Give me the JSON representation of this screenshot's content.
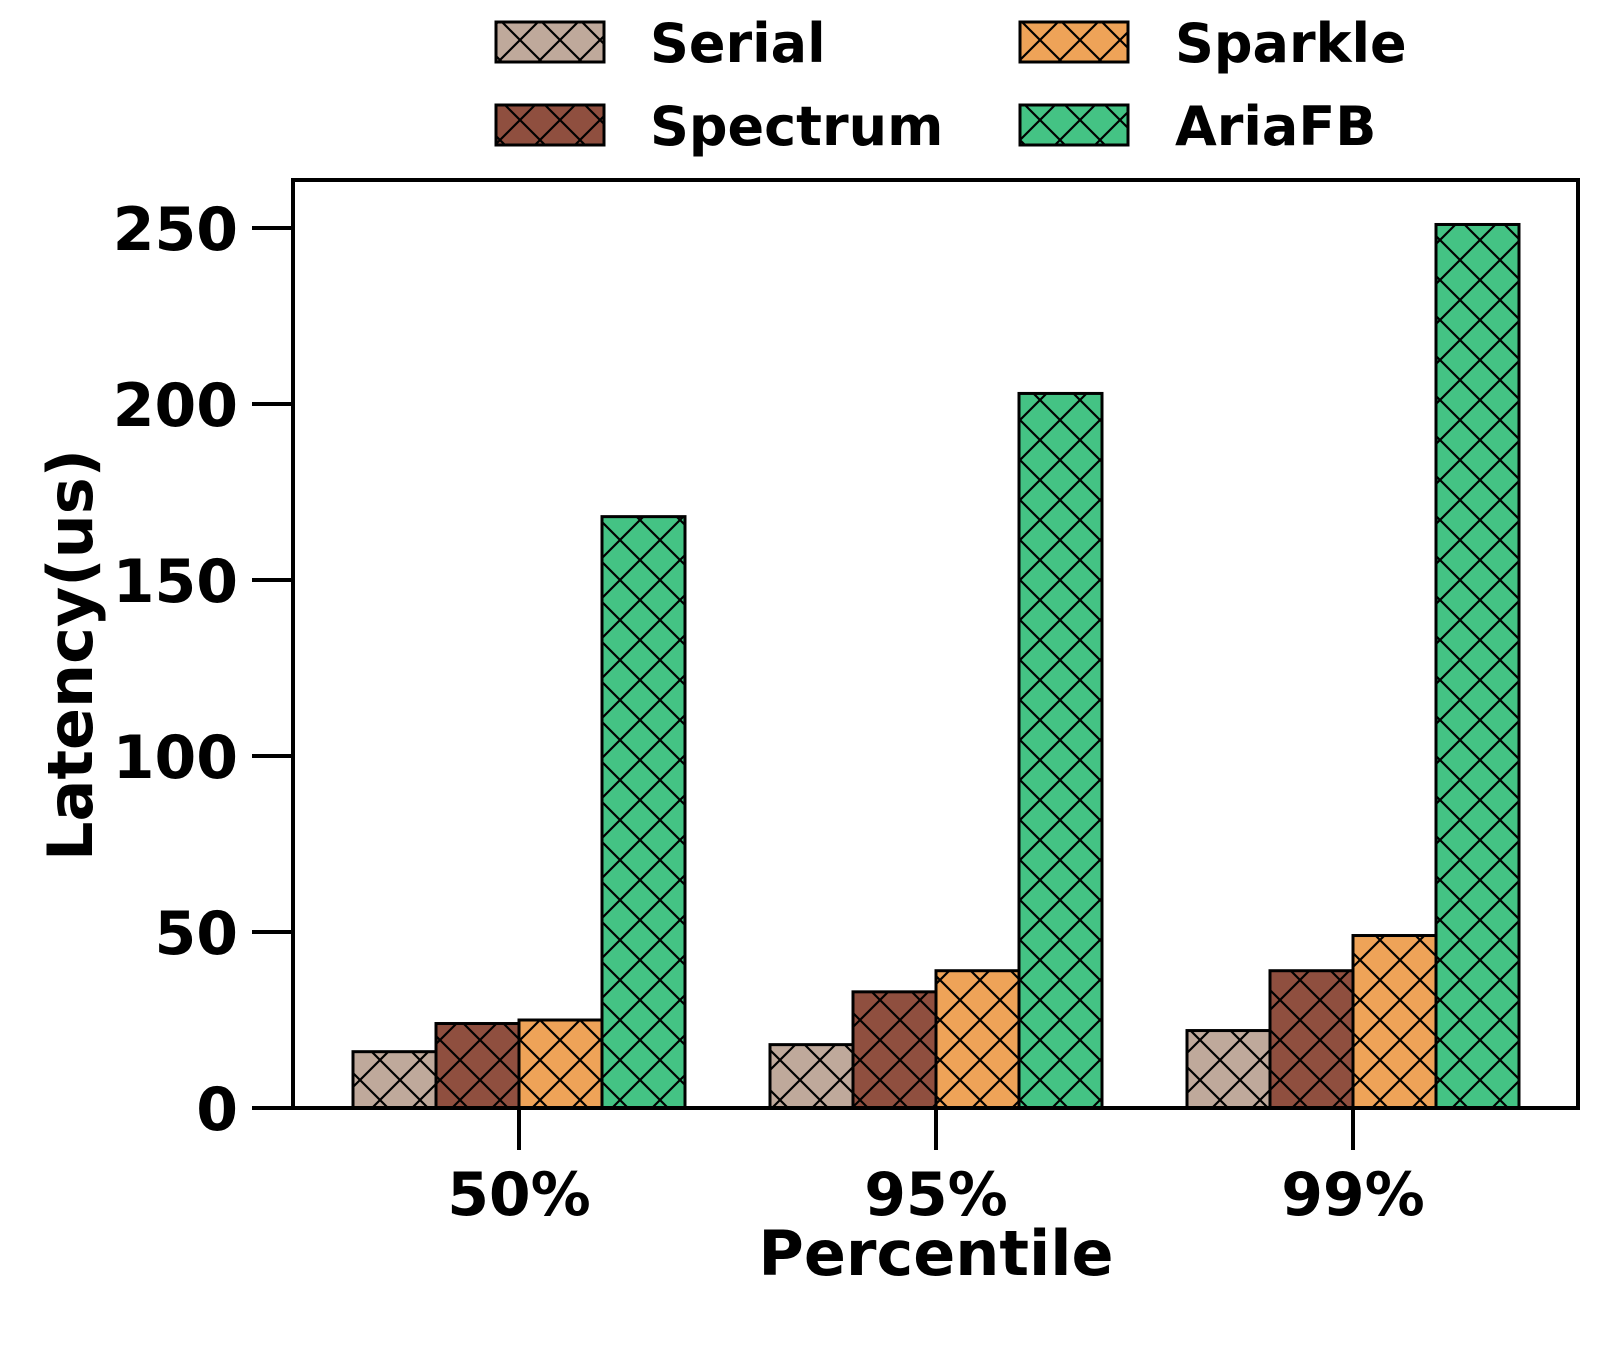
{
  "chart_data": {
    "type": "bar",
    "xlabel": "Percentile",
    "ylabel": "Latency(us)",
    "categories": [
      "50%",
      "95%",
      "99%"
    ],
    "ylim": [
      0,
      265
    ],
    "yticks": [
      0,
      50,
      100,
      150,
      200,
      250
    ],
    "grid": false,
    "legend_position": "top",
    "series": [
      {
        "name": "Serial",
        "color": "#bfa99b",
        "values": [
          16,
          18,
          22
        ]
      },
      {
        "name": "Spectrum",
        "color": "#8f4f3f",
        "values": [
          24,
          33,
          39
        ]
      },
      {
        "name": "Sparkle",
        "color": "#eea358",
        "values": [
          25,
          39,
          49
        ]
      },
      {
        "name": "AriaFB",
        "color": "#44c384",
        "values": [
          168,
          203,
          251
        ]
      }
    ]
  }
}
